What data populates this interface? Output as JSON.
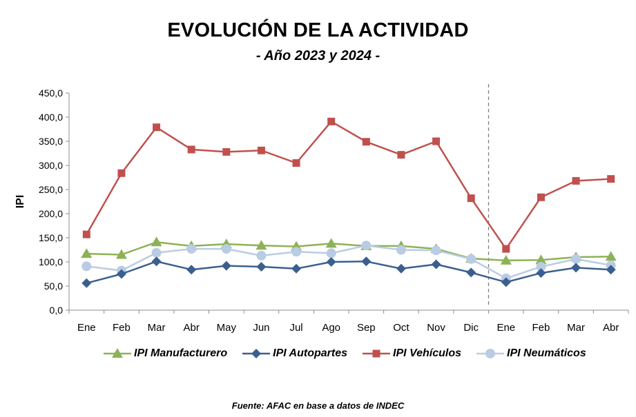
{
  "header": {
    "title": "EVOLUCIÓN DE LA ACTIVIDAD",
    "subtitle": "- Año 2023 y 2024 -"
  },
  "footer": {
    "source": "Fuente: AFAC en base a datos de INDEC"
  },
  "chart_data": {
    "type": "line",
    "title": "EVOLUCIÓN DE LA ACTIVIDAD",
    "subtitle": "- Año 2023 y 2024 -",
    "xlabel": "",
    "ylabel": "IPI",
    "ylim": [
      0,
      450
    ],
    "yticks": [
      "0,0",
      "50,0",
      "100,0",
      "150,0",
      "200,0",
      "250,0",
      "300,0",
      "350,0",
      "400,0",
      "450,0"
    ],
    "categories": [
      "Ene",
      "Feb",
      "Mar",
      "Abr",
      "May",
      "Jun",
      "Jul",
      "Ago",
      "Sep",
      "Oct",
      "Nov",
      "Dic",
      "Ene",
      "Feb",
      "Mar",
      "Abr"
    ],
    "divider_after_index": 11,
    "legend_position": "bottom",
    "grid": false,
    "series": [
      {
        "name": "IPI Manufacturero",
        "color": "#8db255",
        "marker": "triangle",
        "values": [
          117,
          115,
          141,
          133,
          137,
          134,
          132,
          138,
          133,
          133,
          127,
          107,
          103,
          104,
          110,
          111
        ]
      },
      {
        "name": "IPI Autopartes",
        "color": "#3a5f8f",
        "marker": "diamond",
        "values": [
          56,
          75,
          101,
          84,
          92,
          90,
          86,
          100,
          101,
          86,
          95,
          78,
          58,
          77,
          88,
          84
        ]
      },
      {
        "name": "IPI Vehículos",
        "color": "#c0504d",
        "marker": "square",
        "values": [
          157,
          284,
          379,
          333,
          328,
          331,
          305,
          391,
          349,
          322,
          350,
          232,
          127,
          234,
          268,
          272
        ]
      },
      {
        "name": "IPI Neumáticos",
        "color": "#b9cce4",
        "marker": "circle",
        "values": [
          91,
          82,
          119,
          127,
          127,
          113,
          121,
          118,
          134,
          125,
          124,
          106,
          66,
          90,
          106,
          93
        ]
      }
    ]
  }
}
